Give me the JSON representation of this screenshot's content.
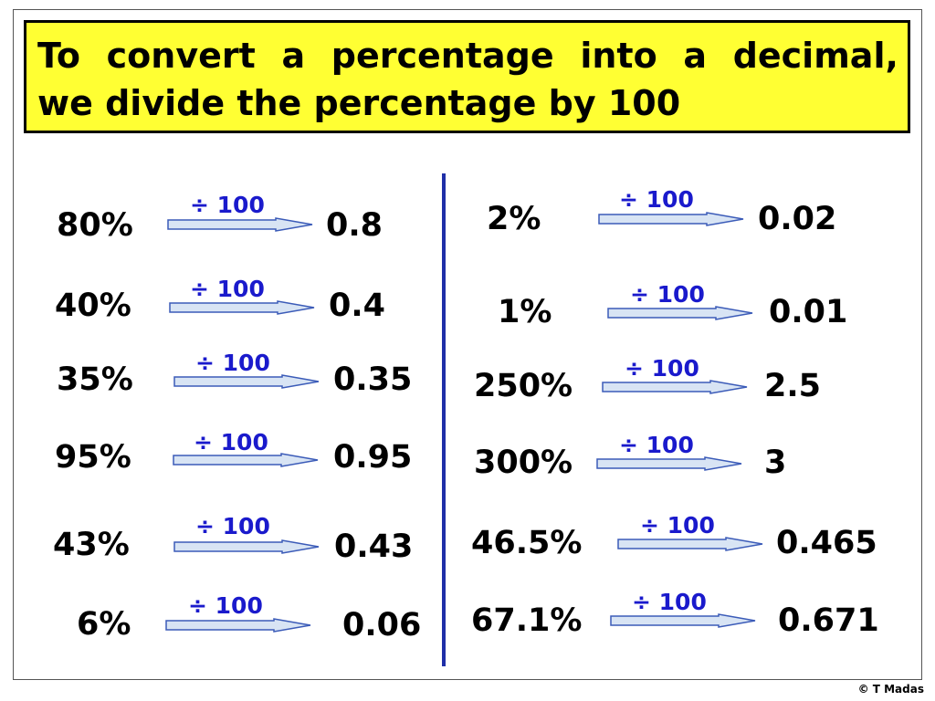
{
  "colors": {
    "title_background": "#ffff33",
    "operator_text": "#1a1acc",
    "arrow_fill": "#d8e4f4",
    "arrow_stroke": "#3b5bb8",
    "divider": "#1f2fa8"
  },
  "title": {
    "line1_words": [
      "To",
      "convert",
      "a",
      "percentage",
      "into",
      "a",
      "decimal,"
    ],
    "line2": "we divide the percentage by 100"
  },
  "left_rows": [
    {
      "percent": "80%",
      "operator": "÷ 100",
      "decimal": "0.8"
    },
    {
      "percent": "40%",
      "operator": "÷ 100",
      "decimal": "0.4"
    },
    {
      "percent": "35%",
      "operator": "÷ 100",
      "decimal": "0.35"
    },
    {
      "percent": "95%",
      "operator": "÷ 100",
      "decimal": "0.95"
    },
    {
      "percent": "43%",
      "operator": "÷ 100",
      "decimal": "0.43"
    },
    {
      "percent": "6%",
      "operator": "÷ 100",
      "decimal": "0.06"
    }
  ],
  "right_rows": [
    {
      "percent": "2%",
      "operator": "÷ 100",
      "decimal": "0.02"
    },
    {
      "percent": "1%",
      "operator": "÷ 100",
      "decimal": "0.01"
    },
    {
      "percent": "250%",
      "operator": "÷ 100",
      "decimal": "2.5"
    },
    {
      "percent": "300%",
      "operator": "÷ 100",
      "decimal": "3"
    },
    {
      "percent": "46.5%",
      "operator": "÷ 100",
      "decimal": "0.465"
    },
    {
      "percent": "67.1%",
      "operator": "÷ 100",
      "decimal": "0.671"
    }
  ],
  "copyright": "© T Madas"
}
